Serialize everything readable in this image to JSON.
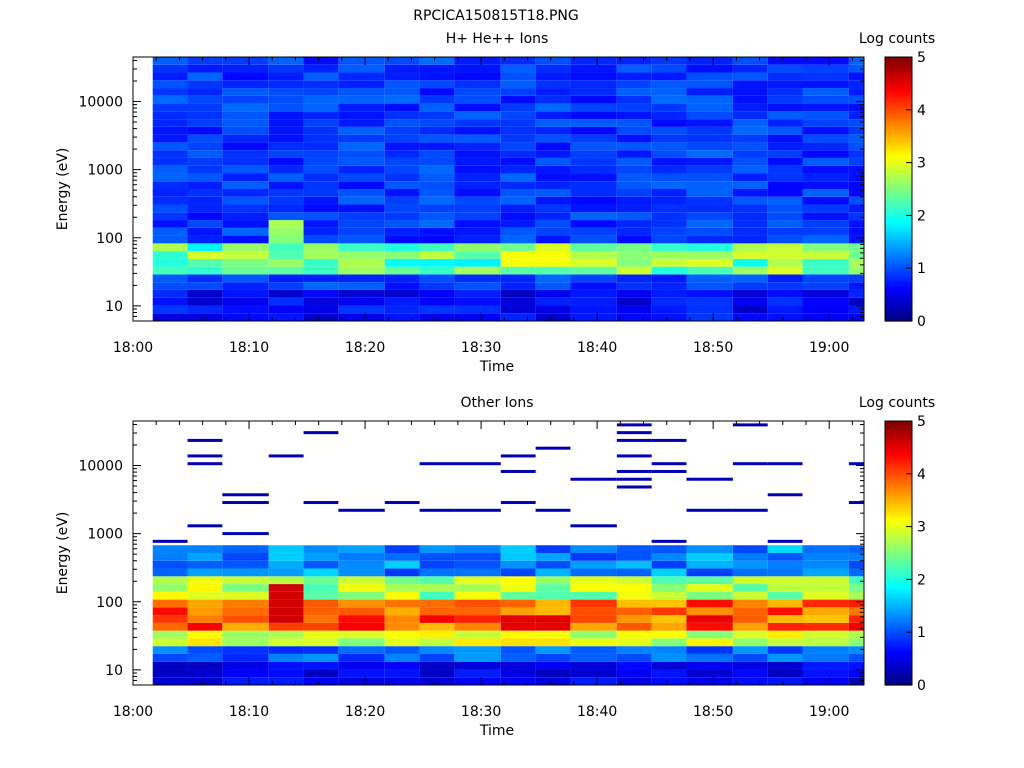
{
  "figure_title": "RPCICA150815T18.PNG",
  "colormap_stops": [
    "#00007f",
    "#0000ff",
    "#007fff",
    "#00ffff",
    "#7fff7f",
    "#ffff00",
    "#ff7f00",
    "#ff0000",
    "#7f0000"
  ],
  "chart_data": [
    {
      "type": "heatmap",
      "title": "H+ He++ Ions",
      "xlabel": "Time",
      "ylabel": "Energy (eV)",
      "colorbar_label": "Log counts",
      "colorbar_range": [
        0,
        5
      ],
      "colorbar_ticks": [
        "0",
        "1",
        "2",
        "3",
        "4",
        "5"
      ],
      "x_range": [
        "18:00",
        "19:03"
      ],
      "x_ticks": [
        "18:00",
        "18:10",
        "18:20",
        "18:30",
        "18:40",
        "18:50",
        "19:00"
      ],
      "y_scale": "log",
      "y_range": [
        6,
        45000
      ],
      "y_ticks": [
        "10",
        "100",
        "1000",
        "10000"
      ],
      "time_columns": [
        "18:02",
        "18:05",
        "18:08",
        "18:12",
        "18:15",
        "18:18",
        "18:22",
        "18:25",
        "18:28",
        "18:32",
        "18:35",
        "18:38",
        "18:42",
        "18:45",
        "18:48",
        "18:52",
        "18:55",
        "18:58",
        "19:02"
      ],
      "energy_band": "dominant population near 40-60 eV (log counts ~2.5-3), 100-300 eV enhancement at 18:12; background ~1 across energies"
    },
    {
      "type": "heatmap",
      "title": "Other Ions",
      "xlabel": "Time",
      "ylabel": "Energy (eV)",
      "colorbar_label": "Log counts",
      "colorbar_range": [
        0,
        5
      ],
      "colorbar_ticks": [
        "0",
        "1",
        "2",
        "3",
        "4",
        "5"
      ],
      "x_range": [
        "18:00",
        "19:03"
      ],
      "x_ticks": [
        "18:00",
        "18:10",
        "18:20",
        "18:30",
        "18:40",
        "18:50",
        "19:00"
      ],
      "y_scale": "log",
      "y_range": [
        6,
        45000
      ],
      "y_ticks": [
        "10",
        "100",
        "1000",
        "10000"
      ],
      "time_columns": [
        "18:02",
        "18:05",
        "18:08",
        "18:12",
        "18:15",
        "18:18",
        "18:22",
        "18:25",
        "18:28",
        "18:32",
        "18:35",
        "18:38",
        "18:42",
        "18:45",
        "18:48",
        "18:52",
        "18:55",
        "18:58",
        "19:02"
      ],
      "energy_band": "strong band 40-100 eV (log counts ~3.5-4.5), peak near 18:12 and 18:32-18:38; sparse low counts above 1000 eV"
    }
  ]
}
